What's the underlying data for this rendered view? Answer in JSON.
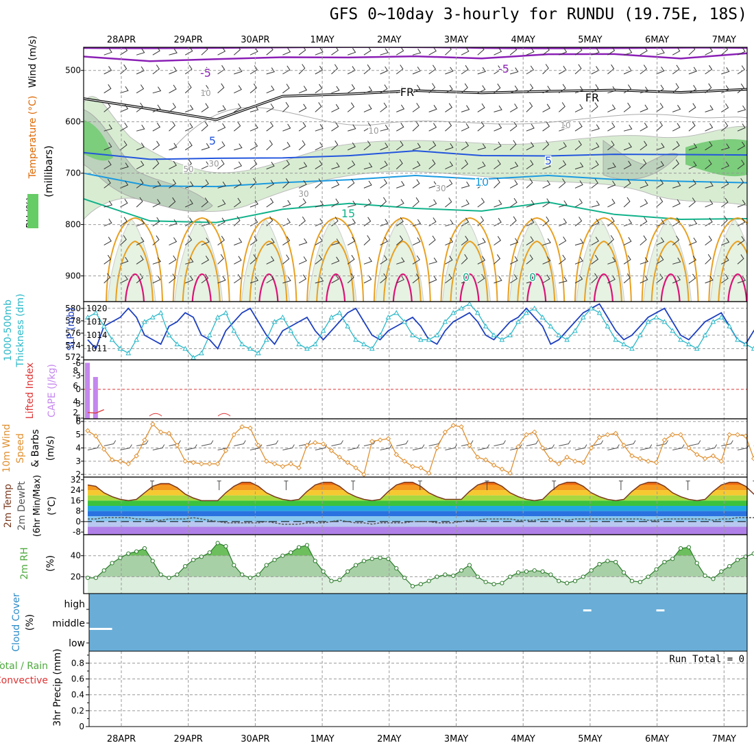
{
  "title": "GFS 0~10day 3-hourly for RUNDU (19.75E, 18S)",
  "dates": [
    "28APR",
    "29APR",
    "30APR",
    "1MAY",
    "2MAY",
    "3MAY",
    "4MAY",
    "5MAY",
    "6MAY",
    "7MAY"
  ],
  "colors": {
    "temp_m5": "#8a1fb5",
    "temp_5": "#2255dd",
    "temp_10": "#1a9ae0",
    "temp_15": "#10b28a",
    "warm": "#e8a020",
    "hot": "#dd1177",
    "freezing": "#000000",
    "slp": "#1d3fbf",
    "thickness": "#2ab8c8",
    "cape": "#c586ee",
    "li": "#dd3333",
    "wind10": "#e09030",
    "rh2m": "#4caa3c",
    "cloud": "#6aaed8"
  },
  "chart_data": [
    {
      "panel": "upper-air",
      "type": "contour",
      "ylabel_parts": [
        "Wind (m/s)",
        "Temperature (°C)",
        "RH (%)"
      ],
      "yunit": "(millibars)",
      "yticks": [
        500,
        600,
        700,
        800,
        900
      ],
      "ylim": [
        455,
        950
      ],
      "contour_labels": [
        {
          "text": "-5",
          "color": "temp_m5"
        },
        {
          "text": "-5",
          "color": "temp_m5"
        },
        {
          "text": "5",
          "color": "temp_5"
        },
        {
          "text": "5",
          "color": "temp_5"
        },
        {
          "text": "10",
          "color": "temp_10"
        },
        {
          "text": "15",
          "color": "temp_15"
        },
        {
          "text": "FR",
          "color": "freezing"
        },
        {
          "text": "FR",
          "color": "freezing"
        },
        {
          "text": "10",
          "color": "grey"
        },
        {
          "text": "10",
          "color": "grey"
        },
        {
          "text": "10",
          "color": "grey"
        },
        {
          "text": "30",
          "color": "grey"
        },
        {
          "text": "50",
          "color": "grey"
        },
        {
          "text": "30",
          "color": "grey"
        },
        {
          "text": "30",
          "color": "grey"
        },
        {
          "text": "0",
          "color": "temp_15"
        },
        {
          "text": "0",
          "color": "temp_15"
        }
      ],
      "temp_m5_level": [
        473,
        479,
        482,
        472,
        474,
        476,
        473,
        470,
        470,
        473,
        470
      ],
      "temp_5_level": [
        660,
        670,
        675,
        668,
        665,
        660,
        662,
        668,
        665,
        660,
        668
      ],
      "temp_10_level": [
        700,
        722,
        730,
        716,
        712,
        708,
        708,
        706,
        714,
        712,
        722
      ],
      "temp_15_level": [
        750,
        790,
        800,
        768,
        758,
        772,
        770,
        758,
        782,
        786,
        792
      ],
      "freezing_level": [
        555,
        572,
        600,
        548,
        545,
        543,
        540,
        542,
        540,
        539,
        540
      ]
    },
    {
      "panel": "slp-thickness",
      "type": "line",
      "ylabel_left": "1000-500mb Thickness (dm)",
      "ylabel_right": "SLP (mb)",
      "yticks_left": [
        580,
        578,
        576,
        574,
        572
      ],
      "yticks_right": [
        1020,
        1017,
        1014,
        1011
      ],
      "ylim_slp": [
        1008.5,
        1021.5
      ],
      "series": [
        {
          "name": "SLP (mb)",
          "color": "slp",
          "marker": "none",
          "values": [
            1013,
            1011,
            1016,
            1017,
            1018,
            1020,
            1018,
            1014,
            1013,
            1012,
            1016,
            1017,
            1019,
            1018,
            1014,
            1013,
            1011,
            1015,
            1017,
            1019,
            1020,
            1017,
            1014,
            1012,
            1015,
            1016,
            1017,
            1018,
            1015,
            1013,
            1015,
            1017,
            1019,
            1020,
            1017,
            1014,
            1013,
            1015,
            1016,
            1017,
            1018,
            1016,
            1013,
            1012,
            1015,
            1017,
            1018,
            1019,
            1017,
            1014,
            1013,
            1015,
            1017,
            1018,
            1020,
            1018,
            1016,
            1012,
            1013,
            1015,
            1017,
            1019,
            1020,
            1021,
            1018,
            1015,
            1013,
            1014,
            1016,
            1018,
            1019,
            1020,
            1017,
            1014,
            1013,
            1015,
            1017,
            1018,
            1019,
            1016,
            1013,
            1012,
            1015,
            1017,
            1019,
            1020
          ]
        },
        {
          "name": "Thickness (dm)",
          "color": "thickness",
          "marker": "triangle",
          "values": [
            1018,
            1019,
            1016,
            1013,
            1011,
            1010,
            1013,
            1017,
            1018,
            1019,
            1014,
            1012,
            1011,
            1009,
            1010,
            1014,
            1018,
            1019,
            1015,
            1012,
            1011,
            1010,
            1013,
            1017,
            1018,
            1015,
            1012,
            1011,
            1012,
            1015,
            1018,
            1019,
            1016,
            1013,
            1012,
            1011,
            1014,
            1018,
            1019,
            1017,
            1014,
            1013,
            1013,
            1014,
            1017,
            1019,
            1020,
            1021,
            1019,
            1016,
            1014,
            1013,
            1014,
            1017,
            1019,
            1020,
            1018,
            1016,
            1014,
            1013,
            1015,
            1018,
            1020,
            1019,
            1016,
            1013,
            1012,
            1011,
            1014,
            1017,
            1018,
            1017,
            1015,
            1013,
            1012,
            1011,
            1014,
            1017,
            1018,
            1016,
            1013,
            1012,
            1011,
            1012,
            1012,
            1013
          ]
        }
      ]
    },
    {
      "panel": "cape-li",
      "type": "bar",
      "ylabel_left": "Lifted Index",
      "ylabel_right": "CAPE (J/kg)",
      "yticks_left": [
        -6,
        -3,
        0,
        3,
        6
      ],
      "yticks_right": [
        8,
        6,
        4,
        2
      ],
      "ylim_cape": [
        0,
        10
      ],
      "cape_bars": [
        {
          "index": 0,
          "value": 9.5
        },
        {
          "index": 1,
          "value": 7.1
        }
      ],
      "li_values": [
        2.6,
        2.2,
        4.7
      ]
    },
    {
      "panel": "wind10m",
      "type": "line",
      "ylabel": "10m Wind Speed & Barbs (m/s)",
      "yticks": [
        6,
        5,
        4,
        3,
        2
      ],
      "ylim": [
        1.8,
        6.2
      ],
      "series": [
        {
          "name": "10m Wind Speed",
          "color": "wind10",
          "values": [
            5.3,
            4.9,
            3.9,
            3.1,
            3.0,
            2.8,
            3.4,
            4.6,
            5.8,
            5.2,
            5.1,
            4.2,
            3.0,
            2.9,
            2.8,
            2.8,
            2.8,
            3.8,
            5.0,
            5.6,
            5.5,
            4.2,
            3.0,
            2.8,
            2.6,
            2.8,
            2.5,
            4.2,
            4.4,
            4.3,
            3.8,
            3.3,
            2.9,
            2.5,
            2.0,
            4.5,
            4.6,
            4.7,
            3.5,
            3.0,
            2.6,
            2.5,
            2.1,
            4.0,
            5.2,
            5.7,
            5.6,
            4.2,
            3.3,
            3.1,
            2.7,
            2.4,
            2.1,
            4.1,
            5.0,
            5.2,
            4.0,
            3.1,
            2.8,
            3.3,
            3.0,
            2.9,
            4.0,
            4.8,
            5.0,
            5.1,
            4.2,
            3.4,
            3.2,
            3.0,
            2.9,
            4.6,
            5.0,
            5.0,
            4.0,
            3.5,
            3.2,
            3.4,
            3.0,
            5.0,
            5.0,
            4.9,
            3.2,
            2.8,
            2.9,
            3.6
          ]
        }
      ]
    },
    {
      "panel": "temp2m",
      "type": "area",
      "ylabel": "2m Temp 2m DewPt (6hr Min/Max) (°C)",
      "yticks": [
        32,
        24,
        16,
        8,
        0,
        -8
      ],
      "ylim": [
        -10,
        34
      ],
      "series": [
        {
          "name": "2m Temp",
          "color": "#7a3a20",
          "values": [
            28,
            27,
            22,
            19,
            17,
            16,
            17,
            22,
            27,
            29,
            29,
            26,
            21,
            18,
            16,
            16,
            16,
            22,
            27,
            30,
            30,
            27,
            22,
            19,
            17,
            16,
            17,
            23,
            28,
            30,
            30,
            27,
            22,
            19,
            17,
            16,
            17,
            23,
            28,
            30,
            30,
            27,
            22,
            19,
            17,
            17,
            17,
            23,
            28,
            30,
            30,
            27,
            22,
            19,
            17,
            16,
            17,
            23,
            28,
            30,
            30,
            27,
            22,
            19,
            17,
            16,
            17,
            23,
            28,
            30,
            30,
            27,
            22,
            19,
            17,
            16,
            17,
            23,
            28,
            30,
            30,
            27,
            21,
            18,
            16,
            16
          ]
        },
        {
          "name": "2m DewPt",
          "color": "#555555",
          "values": [
            2,
            2,
            3,
            3,
            3,
            3,
            2,
            2,
            1,
            1,
            2,
            2,
            2,
            3,
            2,
            1,
            0,
            -1,
            -1,
            -1,
            -1,
            -1,
            0,
            -1,
            -2,
            -2,
            -2,
            -1,
            -1,
            -1,
            0,
            1,
            0,
            -1,
            -1,
            -2,
            -1,
            -1,
            -1,
            -1,
            0,
            0,
            0,
            -1,
            -1,
            -1,
            0,
            1,
            1,
            2,
            2,
            2,
            2,
            1,
            1,
            1,
            2,
            2,
            2,
            1,
            2,
            2,
            2,
            2,
            2,
            2,
            2,
            2,
            2,
            1,
            1,
            2,
            2,
            2,
            2,
            2,
            2,
            1,
            2,
            2,
            3,
            3,
            3,
            3,
            3,
            4
          ]
        }
      ]
    },
    {
      "panel": "rh2m",
      "type": "area",
      "ylabel": "2m RH (%)",
      "yticks": [
        40,
        20
      ],
      "ylim": [
        4,
        60
      ],
      "series": [
        {
          "name": "2m RH",
          "color": "rh2m",
          "values": [
            19,
            19,
            26,
            33,
            38,
            42,
            44,
            47,
            35,
            22,
            19,
            22,
            30,
            36,
            39,
            43,
            52,
            49,
            31,
            22,
            19,
            22,
            31,
            36,
            40,
            43,
            48,
            50,
            35,
            25,
            16,
            17,
            25,
            31,
            35,
            37,
            38,
            37,
            28,
            19,
            11,
            13,
            16,
            20,
            22,
            21,
            26,
            31,
            20,
            15,
            13,
            14,
            20,
            24,
            25,
            26,
            25,
            22,
            16,
            14,
            16,
            20,
            26,
            32,
            35,
            34,
            24,
            16,
            15,
            20,
            27,
            34,
            37,
            47,
            48,
            33,
            21,
            18,
            25,
            30,
            36,
            39,
            42,
            35,
            22,
            19
          ]
        }
      ]
    },
    {
      "panel": "cloud",
      "type": "heatmap",
      "ylabel": "Cloud Cover (%)",
      "yticks": [
        "high",
        "middle",
        "low"
      ],
      "segments": [
        {
          "level": "middle",
          "from_index": 0,
          "to_index": 3
        },
        {
          "level": "high",
          "from_index": 61,
          "to_index": 62
        },
        {
          "level": "high",
          "from_index": 70,
          "to_index": 71
        },
        {
          "level": "middle",
          "from_index": 84,
          "to_index": 86
        }
      ]
    },
    {
      "panel": "precip",
      "type": "bar",
      "ylabel": "3hr Precip (mm)",
      "legend": [
        "Total / Rain",
        "Convective"
      ],
      "yticks": [
        0.8,
        0.6,
        0.4,
        0.2,
        0
      ],
      "ylim": [
        0,
        0.95
      ],
      "annotation": "Run Total = 0",
      "values": []
    }
  ]
}
